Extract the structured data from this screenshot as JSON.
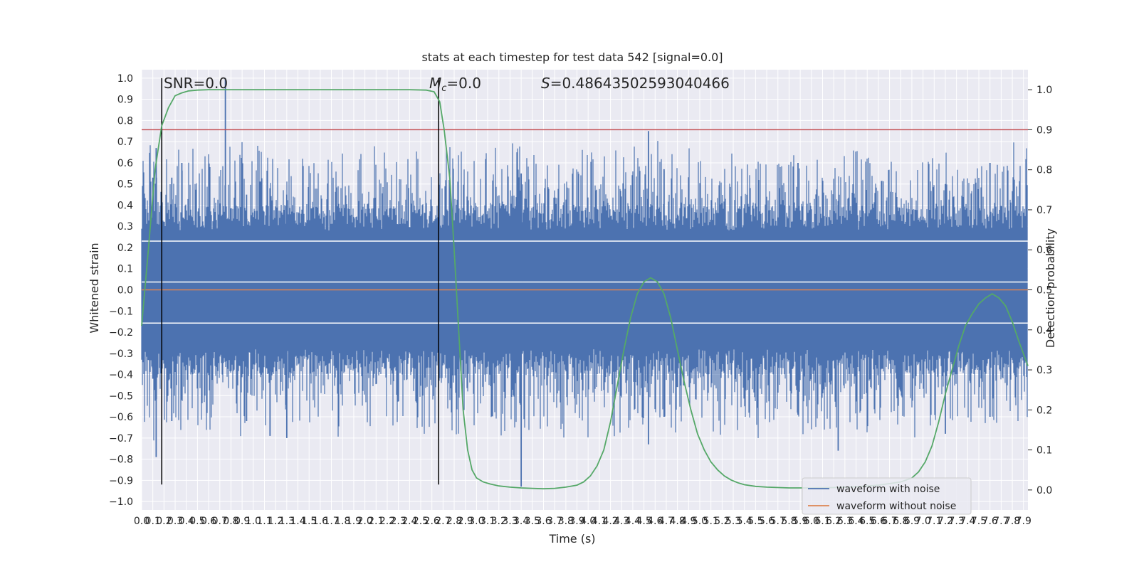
{
  "chart_data": {
    "type": "line",
    "title": "stats at each timestep for test data 542 [signal=0.0]",
    "xlabel": "Time (s)",
    "ylabel_left": "Whitened strain",
    "ylabel_right": "Detection probability",
    "xlim": [
      0.0,
      7.94
    ],
    "ylim_left": [
      -1.04,
      1.04
    ],
    "ylim_right": [
      -0.05,
      1.05
    ],
    "grid": true,
    "legend_position": "lower-right",
    "x_ticks": [
      "0.0",
      "0.1",
      "0.2",
      "0.3",
      "0.4",
      "0.5",
      "0.6",
      "0.7",
      "0.8",
      "0.9",
      "1.0",
      "1.1",
      "1.2",
      "1.3",
      "1.4",
      "1.5",
      "1.6",
      "1.7",
      "1.8",
      "1.9",
      "2.0",
      "2.1",
      "2.2",
      "2.3",
      "2.4",
      "2.5",
      "2.6",
      "2.7",
      "2.8",
      "2.9",
      "3.0",
      "3.1",
      "3.2",
      "3.3",
      "3.4",
      "3.5",
      "3.6",
      "3.7",
      "3.8",
      "3.9",
      "4.0",
      "4.1",
      "4.2",
      "4.3",
      "4.4",
      "4.5",
      "4.6",
      "4.7",
      "4.8",
      "4.9",
      "5.0",
      "5.1",
      "5.2",
      "5.3",
      "5.4",
      "5.5",
      "5.6",
      "5.7",
      "5.8",
      "5.9",
      "6.0",
      "6.1",
      "6.2",
      "6.3",
      "6.4",
      "6.5",
      "6.6",
      "6.7",
      "6.8",
      "6.9",
      "7.0",
      "7.1",
      "7.2",
      "7.3",
      "7.4",
      "7.5",
      "7.6",
      "7.7",
      "7.8",
      "7.9"
    ],
    "y_ticks_left": [
      "−1.0",
      "−0.9",
      "−0.8",
      "−0.7",
      "−0.6",
      "−0.5",
      "−0.4",
      "−0.3",
      "−0.2",
      "−0.1",
      "0.0",
      "0.1",
      "0.2",
      "0.3",
      "0.4",
      "0.5",
      "0.6",
      "0.7",
      "0.8",
      "0.9",
      "1.0"
    ],
    "y_ticks_right": [
      "0.0",
      "0.1",
      "0.2",
      "0.3",
      "0.4",
      "0.5",
      "0.6",
      "0.7",
      "0.8",
      "0.9",
      "1.0"
    ],
    "annotations": {
      "snr": "SNR=0.0",
      "mc_symbol": "M",
      "mc_sub": "c",
      "mc_value": "=0.0",
      "s_symbol": "S",
      "s_value": "=0.48643502593040466"
    },
    "markers": {
      "vertical_lines_x": [
        0.18,
        2.66
      ],
      "vertical_lines_y_range": [
        -0.92,
        1.0
      ],
      "threshold_right": 0.9,
      "colors": {
        "vertical": "#000000",
        "threshold": "#c44e52"
      }
    },
    "series": [
      {
        "name": "waveform with noise",
        "color": "#4c72b0",
        "envelope": "noise in approximately ±0.45 with spikes to about +1.0 near t=0.75 and −0.93 near t=3.4"
      },
      {
        "name": "waveform without noise",
        "color": "#dd8452",
        "values_constant": 0.0
      },
      {
        "axis": "right",
        "color": "#55a868",
        "x": [
          0.0,
          0.06,
          0.12,
          0.18,
          0.24,
          0.3,
          0.36,
          0.42,
          0.5,
          0.6,
          0.8,
          1.2,
          1.6,
          2.0,
          2.4,
          2.55,
          2.62,
          2.67,
          2.71,
          2.76,
          2.8,
          2.84,
          2.88,
          2.92,
          2.96,
          3.0,
          3.06,
          3.12,
          3.2,
          3.3,
          3.4,
          3.5,
          3.6,
          3.7,
          3.8,
          3.9,
          3.96,
          4.02,
          4.08,
          4.14,
          4.2,
          4.26,
          4.32,
          4.38,
          4.44,
          4.5,
          4.56,
          4.62,
          4.68,
          4.74,
          4.8,
          4.86,
          4.92,
          4.98,
          5.04,
          5.1,
          5.16,
          5.22,
          5.28,
          5.34,
          5.4,
          5.5,
          5.6,
          5.8,
          6.0,
          6.2,
          6.4,
          6.6,
          6.8,
          6.9,
          6.96,
          7.02,
          7.08,
          7.14,
          7.2,
          7.26,
          7.32,
          7.38,
          7.44,
          7.5,
          7.56,
          7.62,
          7.68,
          7.74,
          7.8,
          7.86,
          7.94
        ],
        "y": [
          0.41,
          0.6,
          0.8,
          0.91,
          0.955,
          0.985,
          0.992,
          0.997,
          0.999,
          1.0,
          1.0,
          1.0,
          1.0,
          1.0,
          1.0,
          0.999,
          0.995,
          0.97,
          0.9,
          0.78,
          0.6,
          0.4,
          0.2,
          0.1,
          0.05,
          0.03,
          0.02,
          0.015,
          0.01,
          0.007,
          0.005,
          0.004,
          0.003,
          0.004,
          0.007,
          0.012,
          0.02,
          0.035,
          0.06,
          0.1,
          0.17,
          0.26,
          0.35,
          0.43,
          0.49,
          0.52,
          0.53,
          0.52,
          0.49,
          0.43,
          0.35,
          0.27,
          0.2,
          0.14,
          0.1,
          0.07,
          0.05,
          0.035,
          0.025,
          0.018,
          0.013,
          0.009,
          0.007,
          0.005,
          0.005,
          0.006,
          0.008,
          0.012,
          0.02,
          0.03,
          0.045,
          0.07,
          0.11,
          0.17,
          0.24,
          0.3,
          0.36,
          0.41,
          0.44,
          0.465,
          0.48,
          0.49,
          0.48,
          0.46,
          0.42,
          0.37,
          0.31
        ]
      }
    ]
  }
}
